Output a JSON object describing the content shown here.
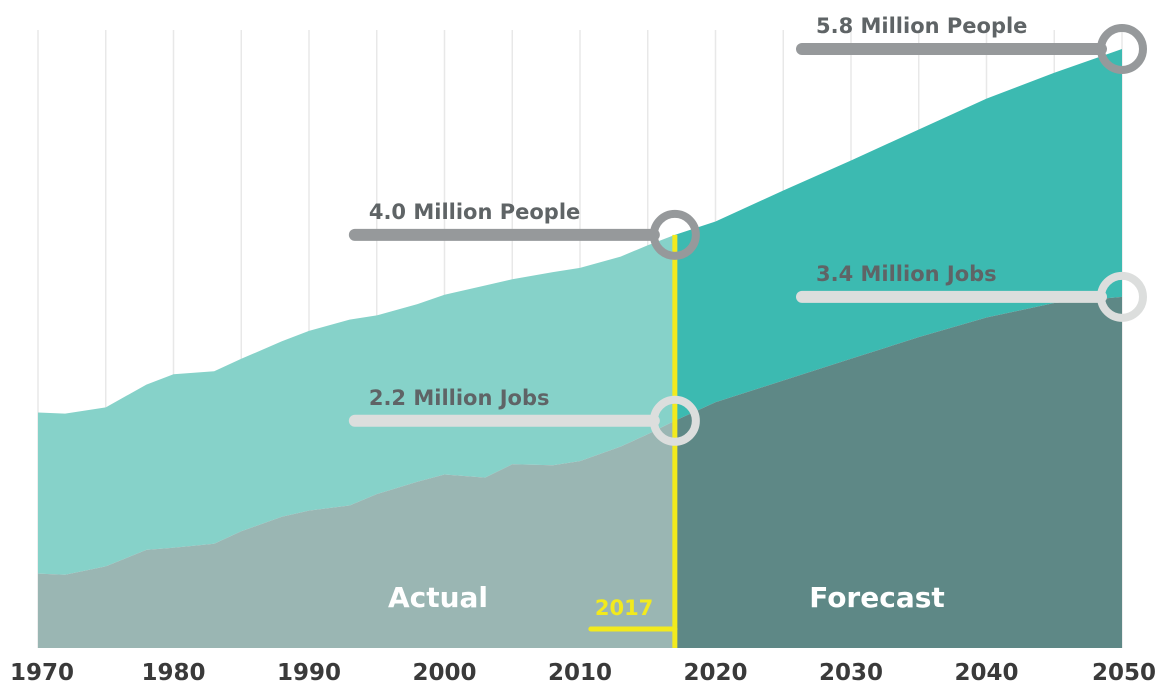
{
  "chart_data": {
    "type": "area",
    "x": [
      1970,
      1972,
      1975,
      1978,
      1980,
      1983,
      1985,
      1988,
      1990,
      1993,
      1995,
      1998,
      2000,
      2003,
      2005,
      2008,
      2010,
      2013,
      2015,
      2017,
      2020,
      2025,
      2030,
      2035,
      2040,
      2045,
      2050
    ],
    "series": [
      {
        "name": "People",
        "values": [
          2.28,
          2.27,
          2.33,
          2.55,
          2.65,
          2.68,
          2.8,
          2.97,
          3.07,
          3.18,
          3.22,
          3.33,
          3.42,
          3.51,
          3.57,
          3.64,
          3.68,
          3.79,
          3.9,
          4.0,
          4.13,
          4.43,
          4.72,
          5.02,
          5.32,
          5.57,
          5.8
        ]
      },
      {
        "name": "Jobs",
        "values": [
          0.72,
          0.71,
          0.79,
          0.95,
          0.97,
          1.01,
          1.13,
          1.27,
          1.33,
          1.38,
          1.49,
          1.61,
          1.68,
          1.65,
          1.78,
          1.77,
          1.81,
          1.95,
          2.07,
          2.2,
          2.38,
          2.59,
          2.8,
          3.01,
          3.2,
          3.34,
          3.4
        ]
      }
    ],
    "x_ticks": [
      "1970",
      "1980",
      "1990",
      "2000",
      "2010",
      "2020",
      "2030",
      "2040",
      "2050"
    ],
    "xlim": [
      1970,
      2050
    ],
    "ylim": [
      0,
      6.1
    ],
    "grid": true,
    "current_year": 2017,
    "current_year_label": "2017",
    "region_labels": {
      "actual": "Actual",
      "forecast": "Forecast"
    },
    "annotations": [
      {
        "label": "5.8 Million People",
        "x": 2050,
        "value": 5.8,
        "series": "People"
      },
      {
        "label": "4.0 Million People",
        "x": 2017,
        "value": 4.0,
        "series": "People"
      },
      {
        "label": "3.4 Million Jobs",
        "x": 2050,
        "value": 3.4,
        "series": "Jobs"
      },
      {
        "label": "2.2 Million Jobs",
        "x": 2017,
        "value": 2.2,
        "series": "Jobs"
      }
    ],
    "colors": {
      "people_actual": "#86d2c9",
      "people_forecast": "#3cbab1",
      "jobs_actual": "#9ab6b3",
      "jobs_forecast": "#5e8886",
      "current_year_line": "#f2ea1d",
      "people_annotation": "#96999b",
      "jobs_annotation": "#dcdedd",
      "grid": "#e8e8e8"
    }
  }
}
